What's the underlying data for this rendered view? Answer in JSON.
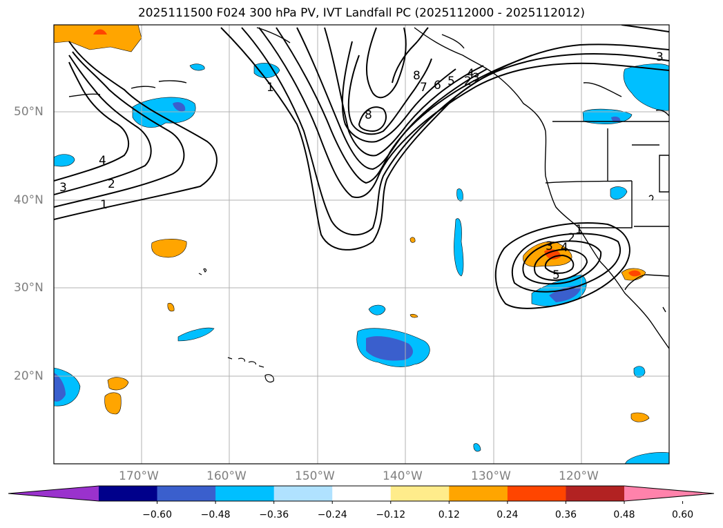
{
  "title": "2025111500 F024 300 hPa PV, IVT Landfall PC (2025112000 - 2025112012)",
  "lat_labels": [
    "50°N",
    "40°N",
    "30°N",
    "20°N"
  ],
  "lon_labels": [
    "170°W",
    "160°W",
    "150°W",
    "140°W",
    "130°W",
    "120°W"
  ],
  "contour_labels": [
    "1",
    "2",
    "3",
    "4",
    "1",
    "2",
    "3",
    "4",
    "5",
    "6",
    "7",
    "8",
    "8",
    "3",
    "1",
    "2",
    "3",
    "4",
    "5"
  ],
  "colorbar": {
    "ticks": [
      "−0.60",
      "−0.48",
      "−0.36",
      "−0.24",
      "−0.12",
      "0.12",
      "0.24",
      "0.36",
      "0.48",
      "0.60"
    ],
    "colors": [
      "#9a32cd",
      "#00008b",
      "#3a5fcd",
      "#00bfff",
      "#b0e2ff",
      "#ffffff",
      "#ffec8b",
      "#ffa500",
      "#ff4500",
      "#b22222",
      "#ff82ab"
    ]
  }
}
